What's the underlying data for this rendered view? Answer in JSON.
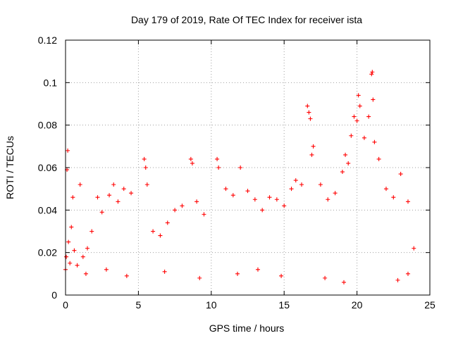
{
  "chart_data": {
    "type": "scatter",
    "title": "Day 179 of 2019, Rate Of TEC Index for receiver ista",
    "xlabel": "GPS time / hours",
    "ylabel": "ROTI / TECUs",
    "xlim": [
      0,
      25
    ],
    "ylim": [
      0,
      0.12
    ],
    "x_ticks": [
      0,
      5,
      10,
      15,
      20,
      25
    ],
    "y_ticks": [
      0,
      0.02,
      0.04,
      0.06,
      0.08,
      0.1,
      0.12
    ],
    "x_tick_labels": [
      "0",
      "5",
      "10",
      "15",
      "20",
      "25"
    ],
    "y_tick_labels": [
      "0",
      "0.02",
      "0.04",
      "0.06",
      "0.08",
      "0.1",
      "0.12"
    ],
    "grid": true,
    "marker": "+",
    "color": "#ff0000",
    "series": [
      {
        "name": "ROTI",
        "points": [
          [
            0.0,
            0.012
          ],
          [
            0.05,
            0.018
          ],
          [
            0.1,
            0.059
          ],
          [
            0.15,
            0.068
          ],
          [
            0.2,
            0.025
          ],
          [
            0.3,
            0.015
          ],
          [
            0.4,
            0.032
          ],
          [
            0.5,
            0.046
          ],
          [
            0.6,
            0.021
          ],
          [
            0.8,
            0.014
          ],
          [
            1.0,
            0.052
          ],
          [
            1.2,
            0.018
          ],
          [
            1.5,
            0.022
          ],
          [
            1.8,
            0.03
          ],
          [
            2.2,
            0.046
          ],
          [
            2.5,
            0.039
          ],
          [
            3.0,
            0.047
          ],
          [
            3.3,
            0.052
          ],
          [
            3.6,
            0.044
          ],
          [
            4.0,
            0.05
          ],
          [
            4.5,
            0.048
          ],
          [
            5.4,
            0.064
          ],
          [
            5.5,
            0.06
          ],
          [
            5.6,
            0.052
          ],
          [
            6.0,
            0.03
          ],
          [
            6.5,
            0.028
          ],
          [
            7.0,
            0.034
          ],
          [
            7.5,
            0.04
          ],
          [
            8.0,
            0.042
          ],
          [
            8.6,
            0.064
          ],
          [
            8.7,
            0.062
          ],
          [
            9.0,
            0.044
          ],
          [
            9.5,
            0.038
          ],
          [
            10.4,
            0.064
          ],
          [
            10.5,
            0.06
          ],
          [
            11.0,
            0.05
          ],
          [
            11.5,
            0.047
          ],
          [
            12.0,
            0.06
          ],
          [
            12.5,
            0.049
          ],
          [
            13.0,
            0.045
          ],
          [
            13.5,
            0.04
          ],
          [
            14.0,
            0.046
          ],
          [
            14.5,
            0.045
          ],
          [
            15.0,
            0.042
          ],
          [
            15.5,
            0.05
          ],
          [
            15.8,
            0.054
          ],
          [
            16.2,
            0.052
          ],
          [
            16.6,
            0.089
          ],
          [
            16.7,
            0.086
          ],
          [
            16.8,
            0.083
          ],
          [
            16.9,
            0.066
          ],
          [
            17.0,
            0.07
          ],
          [
            17.5,
            0.052
          ],
          [
            18.0,
            0.045
          ],
          [
            18.5,
            0.048
          ],
          [
            19.0,
            0.058
          ],
          [
            19.2,
            0.066
          ],
          [
            19.4,
            0.062
          ],
          [
            19.6,
            0.075
          ],
          [
            19.8,
            0.084
          ],
          [
            20.0,
            0.082
          ],
          [
            20.1,
            0.094
          ],
          [
            20.2,
            0.089
          ],
          [
            20.5,
            0.074
          ],
          [
            20.8,
            0.084
          ],
          [
            21.0,
            0.104
          ],
          [
            21.05,
            0.105
          ],
          [
            21.1,
            0.092
          ],
          [
            21.2,
            0.072
          ],
          [
            21.5,
            0.064
          ],
          [
            22.0,
            0.05
          ],
          [
            22.5,
            0.046
          ],
          [
            23.0,
            0.057
          ],
          [
            23.5,
            0.044
          ],
          [
            23.9,
            0.022
          ],
          [
            1.4,
            0.01
          ],
          [
            2.8,
            0.012
          ],
          [
            4.2,
            0.009
          ],
          [
            6.8,
            0.011
          ],
          [
            9.2,
            0.008
          ],
          [
            11.8,
            0.01
          ],
          [
            13.2,
            0.012
          ],
          [
            14.8,
            0.009
          ],
          [
            17.8,
            0.008
          ],
          [
            19.1,
            0.006
          ],
          [
            22.8,
            0.007
          ],
          [
            23.5,
            0.01
          ]
        ]
      }
    ]
  }
}
